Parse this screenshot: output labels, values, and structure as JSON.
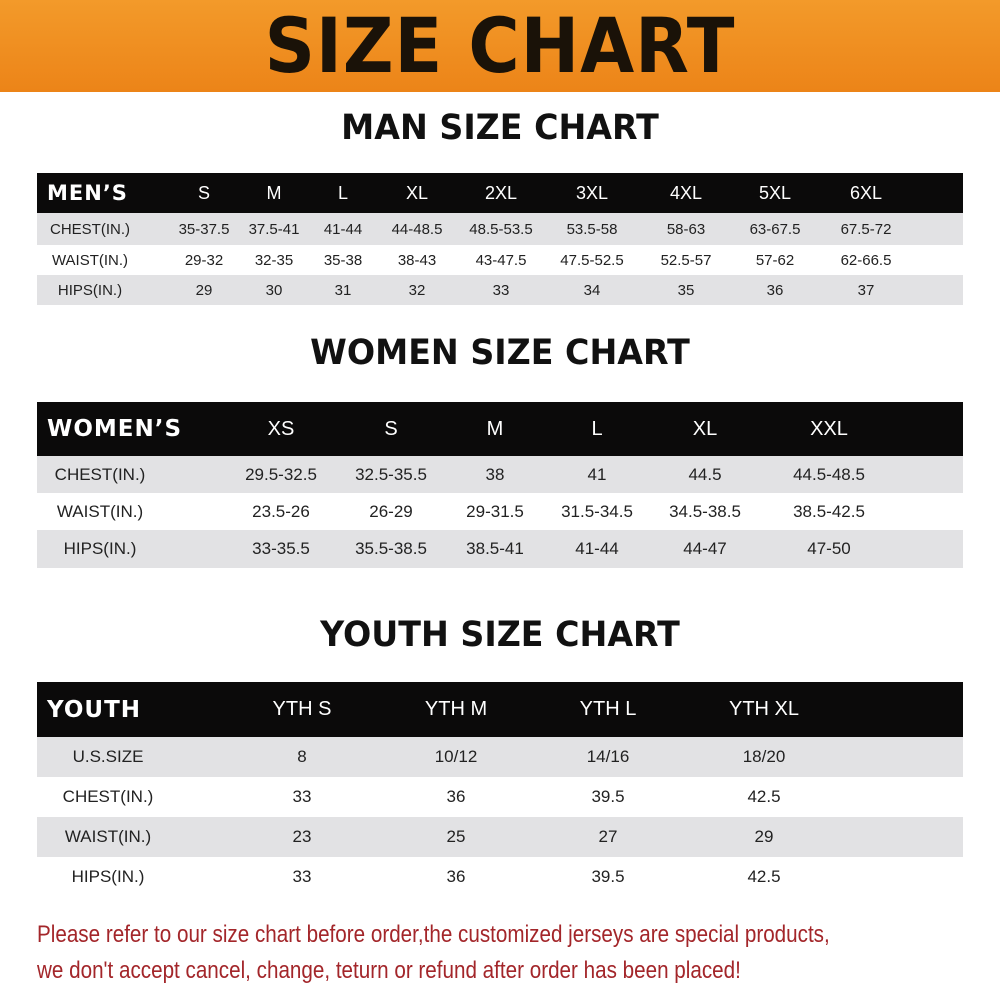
{
  "banner": {
    "title": "SIZE CHART",
    "color": "#f08a1e"
  },
  "men": {
    "title": "MAN SIZE CHART",
    "header": [
      "MEN’S",
      "S",
      "M",
      "L",
      "XL",
      "2XL",
      "3XL",
      "4XL",
      "5XL",
      "6XL"
    ],
    "rows": [
      [
        "CHEST(IN.)",
        "35-37.5",
        "37.5-41",
        "41-44",
        "44-48.5",
        "48.5-53.5",
        "53.5-58",
        "58-63",
        "63-67.5",
        "67.5-72"
      ],
      [
        "WAIST(IN.)",
        "29-32",
        "32-35",
        "35-38",
        "38-43",
        "43-47.5",
        "47.5-52.5",
        "52.5-57",
        "57-62",
        "62-66.5"
      ],
      [
        "HIPS(IN.)",
        "29",
        "30",
        "31",
        "32",
        "33",
        "34",
        "35",
        "36",
        "37"
      ]
    ]
  },
  "women": {
    "title": "WOMEN SIZE CHART",
    "header": [
      "WOMEN’S",
      "XS",
      "S",
      "M",
      "L",
      "XL",
      "XXL"
    ],
    "rows": [
      [
        "CHEST(IN.)",
        "29.5-32.5",
        "32.5-35.5",
        "38",
        "41",
        "44.5",
        "44.5-48.5"
      ],
      [
        "WAIST(IN.)",
        "23.5-26",
        "26-29",
        "29-31.5",
        "31.5-34.5",
        "34.5-38.5",
        "38.5-42.5"
      ],
      [
        "HIPS(IN.)",
        "33-35.5",
        "35.5-38.5",
        "38.5-41",
        "41-44",
        "44-47",
        "47-50"
      ]
    ]
  },
  "youth": {
    "title": "YOUTH SIZE CHART",
    "header": [
      "YOUTH",
      "YTH S",
      "YTH M",
      "YTH L",
      "YTH XL"
    ],
    "rows": [
      [
        "U.S.SIZE",
        "8",
        "10/12",
        "14/16",
        "18/20"
      ],
      [
        "CHEST(IN.)",
        "33",
        "36",
        "39.5",
        "42.5"
      ],
      [
        "WAIST(IN.)",
        "23",
        "25",
        "27",
        "29"
      ],
      [
        "HIPS(IN.)",
        "33",
        "36",
        "39.5",
        "42.5"
      ]
    ]
  },
  "notice": {
    "line1": "Please refer to our size chart before order,the customized jerseys are special products,",
    "line2": "we don't accept cancel, change, teturn or refund after order has been placed!",
    "color": "#a3262a"
  }
}
